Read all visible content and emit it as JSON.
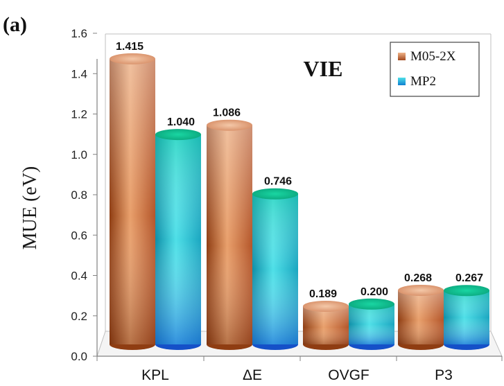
{
  "panel_label": "(a)",
  "chart_data": {
    "type": "bar",
    "title": "VIE",
    "xlabel": "",
    "ylabel": "MUE (eV)",
    "ylim": [
      0,
      1.6
    ],
    "yticks": [
      "0.0",
      "0.2",
      "0.4",
      "0.6",
      "0.8",
      "1.0",
      "1.2",
      "1.4",
      "1.6"
    ],
    "categories": [
      "KPL",
      "ΔE",
      "OVGF",
      "P3"
    ],
    "series": [
      {
        "name": "M05-2X",
        "values": [
          1.415,
          1.086,
          0.189,
          0.268
        ],
        "labels": [
          "1.415",
          "1.086",
          "0.189",
          "0.268"
        ]
      },
      {
        "name": "MP2",
        "values": [
          1.04,
          0.746,
          0.2,
          0.267
        ],
        "labels": [
          "1.040",
          "0.746",
          "0.200",
          "0.267"
        ]
      }
    ],
    "legend_position": "top-right",
    "grid": false,
    "bar_style": "3d-cylinder"
  }
}
